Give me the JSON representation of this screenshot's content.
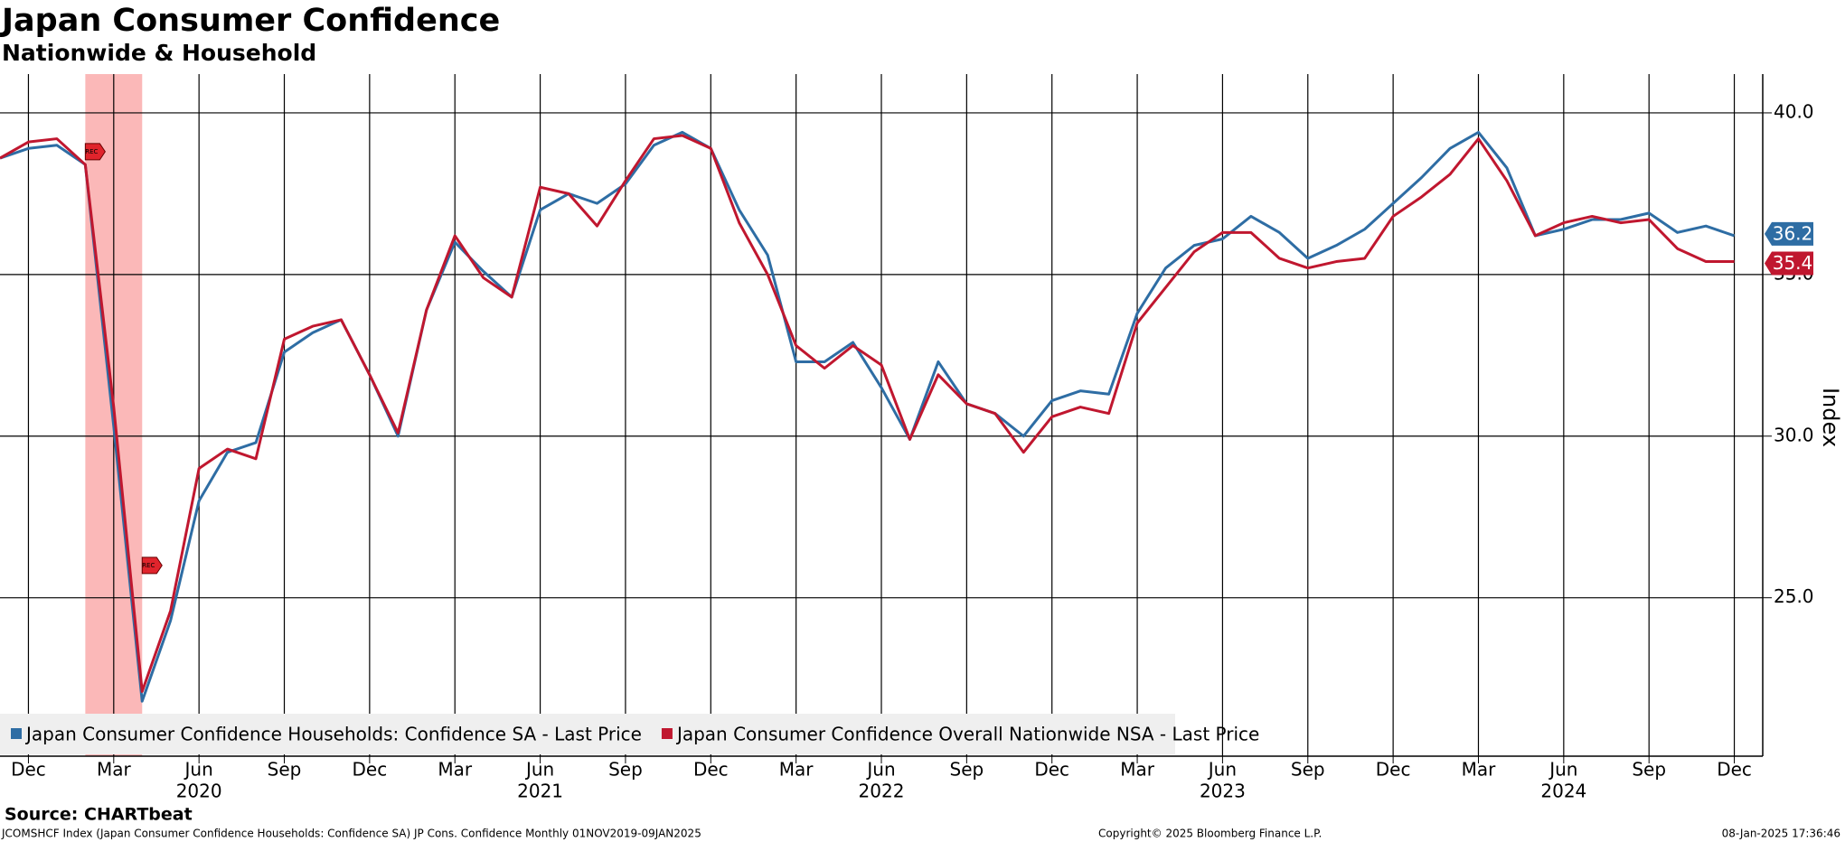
{
  "chart_data": {
    "type": "line",
    "title": "Japan Consumer Confidence",
    "subtitle": "Nationwide & Household",
    "y_axis_label": "Index",
    "source": "Source: CHARTbeat",
    "footer_left": "JCOMSHCF Index (Japan Consumer Confidence Households: Confidence SA) JP Cons. Confidence  Monthly 01NOV2019-09JAN2025",
    "footer_center": "Copyright© 2025 Bloomberg Finance L.P.",
    "footer_right": "08-Jan-2025 17:36:46",
    "recession": {
      "label": "REC",
      "start": "2020-02",
      "end": "2020-04",
      "color": "#f9a0a0"
    },
    "x": [
      "2019-11",
      "2019-12",
      "2020-01",
      "2020-02",
      "2020-03",
      "2020-04",
      "2020-05",
      "2020-06",
      "2020-07",
      "2020-08",
      "2020-09",
      "2020-10",
      "2020-11",
      "2020-12",
      "2021-01",
      "2021-02",
      "2021-03",
      "2021-04",
      "2021-05",
      "2021-06",
      "2021-07",
      "2021-08",
      "2021-09",
      "2021-10",
      "2021-11",
      "2021-12",
      "2022-01",
      "2022-02",
      "2022-03",
      "2022-04",
      "2022-05",
      "2022-06",
      "2022-07",
      "2022-08",
      "2022-09",
      "2022-10",
      "2022-11",
      "2022-12",
      "2023-01",
      "2023-02",
      "2023-03",
      "2023-04",
      "2023-05",
      "2023-06",
      "2023-07",
      "2023-08",
      "2023-09",
      "2023-10",
      "2023-11",
      "2023-12",
      "2024-01",
      "2024-02",
      "2024-03",
      "2024-04",
      "2024-05",
      "2024-06",
      "2024-07",
      "2024-08",
      "2024-09",
      "2024-10",
      "2024-11",
      "2024-12"
    ],
    "series": [
      {
        "name": "Japan Consumer Confidence Households: Confidence SA - Last Price",
        "color": "#2e6da4",
        "values": [
          38.6,
          38.9,
          39.0,
          38.4,
          30.3,
          21.8,
          24.3,
          28.0,
          29.5,
          29.8,
          32.6,
          33.2,
          33.6,
          31.9,
          30.0,
          33.9,
          36.0,
          35.1,
          34.3,
          37.0,
          37.5,
          37.2,
          37.8,
          39.0,
          39.4,
          38.9,
          37.0,
          35.6,
          32.3,
          32.3,
          32.9,
          31.5,
          29.9,
          32.3,
          31.0,
          30.7,
          30.0,
          31.1,
          31.4,
          31.3,
          33.8,
          35.2,
          35.9,
          36.1,
          36.8,
          36.3,
          35.5,
          35.9,
          36.4,
          37.2,
          38.0,
          38.9,
          39.4,
          38.3,
          36.2,
          36.4,
          36.7,
          36.7,
          36.9,
          36.3,
          36.5,
          36.2
        ]
      },
      {
        "name": "Japan Consumer Confidence Overall Nationwide NSA - Last Price",
        "color": "#c0172f",
        "values": [
          38.6,
          39.1,
          39.2,
          38.4,
          30.9,
          22.1,
          24.6,
          29.0,
          29.6,
          29.3,
          33.0,
          33.4,
          33.6,
          31.9,
          30.1,
          33.9,
          36.2,
          34.9,
          34.3,
          37.7,
          37.5,
          36.5,
          37.9,
          39.2,
          39.3,
          38.9,
          36.6,
          35.0,
          32.8,
          32.1,
          32.8,
          32.2,
          29.9,
          31.9,
          31.0,
          30.7,
          29.5,
          30.6,
          30.9,
          30.7,
          33.5,
          34.6,
          35.7,
          36.3,
          36.3,
          35.5,
          35.2,
          35.4,
          35.5,
          36.8,
          37.4,
          38.1,
          39.2,
          37.9,
          36.2,
          36.6,
          36.8,
          36.6,
          36.7,
          35.8,
          35.4,
          35.4
        ]
      }
    ],
    "xlim": [
      "2019-11",
      "2025-01"
    ],
    "xticks": [
      {
        "value": "2019-12",
        "label": "Dec"
      },
      {
        "value": "2020-03",
        "label": "Mar"
      },
      {
        "value": "2020-06",
        "label": "Jun"
      },
      {
        "value": "2020-09",
        "label": "Sep"
      },
      {
        "value": "2020-12",
        "label": "Dec"
      },
      {
        "value": "2021-03",
        "label": "Mar"
      },
      {
        "value": "2021-06",
        "label": "Jun"
      },
      {
        "value": "2021-09",
        "label": "Sep"
      },
      {
        "value": "2021-12",
        "label": "Dec"
      },
      {
        "value": "2022-03",
        "label": "Mar"
      },
      {
        "value": "2022-06",
        "label": "Jun"
      },
      {
        "value": "2022-09",
        "label": "Sep"
      },
      {
        "value": "2022-12",
        "label": "Dec"
      },
      {
        "value": "2023-03",
        "label": "Mar"
      },
      {
        "value": "2023-06",
        "label": "Jun"
      },
      {
        "value": "2023-09",
        "label": "Sep"
      },
      {
        "value": "2023-12",
        "label": "Dec"
      },
      {
        "value": "2024-03",
        "label": "Mar"
      },
      {
        "value": "2024-06",
        "label": "Jun"
      },
      {
        "value": "2024-09",
        "label": "Sep"
      },
      {
        "value": "2024-12",
        "label": "Dec"
      }
    ],
    "year_labels": [
      {
        "value": "2020-06",
        "label": "2020"
      },
      {
        "value": "2021-06",
        "label": "2021"
      },
      {
        "value": "2022-06",
        "label": "2022"
      },
      {
        "value": "2023-06",
        "label": "2023"
      },
      {
        "value": "2024-06",
        "label": "2024"
      }
    ],
    "ylim": [
      20.1,
      41.2
    ],
    "yticks": [
      {
        "value": 25,
        "label": "25.0"
      },
      {
        "value": 30,
        "label": "30.0"
      },
      {
        "value": 35,
        "label": "35.0"
      },
      {
        "value": 40,
        "label": "40.0"
      }
    ],
    "grid": true,
    "legend": "bottom-left"
  }
}
